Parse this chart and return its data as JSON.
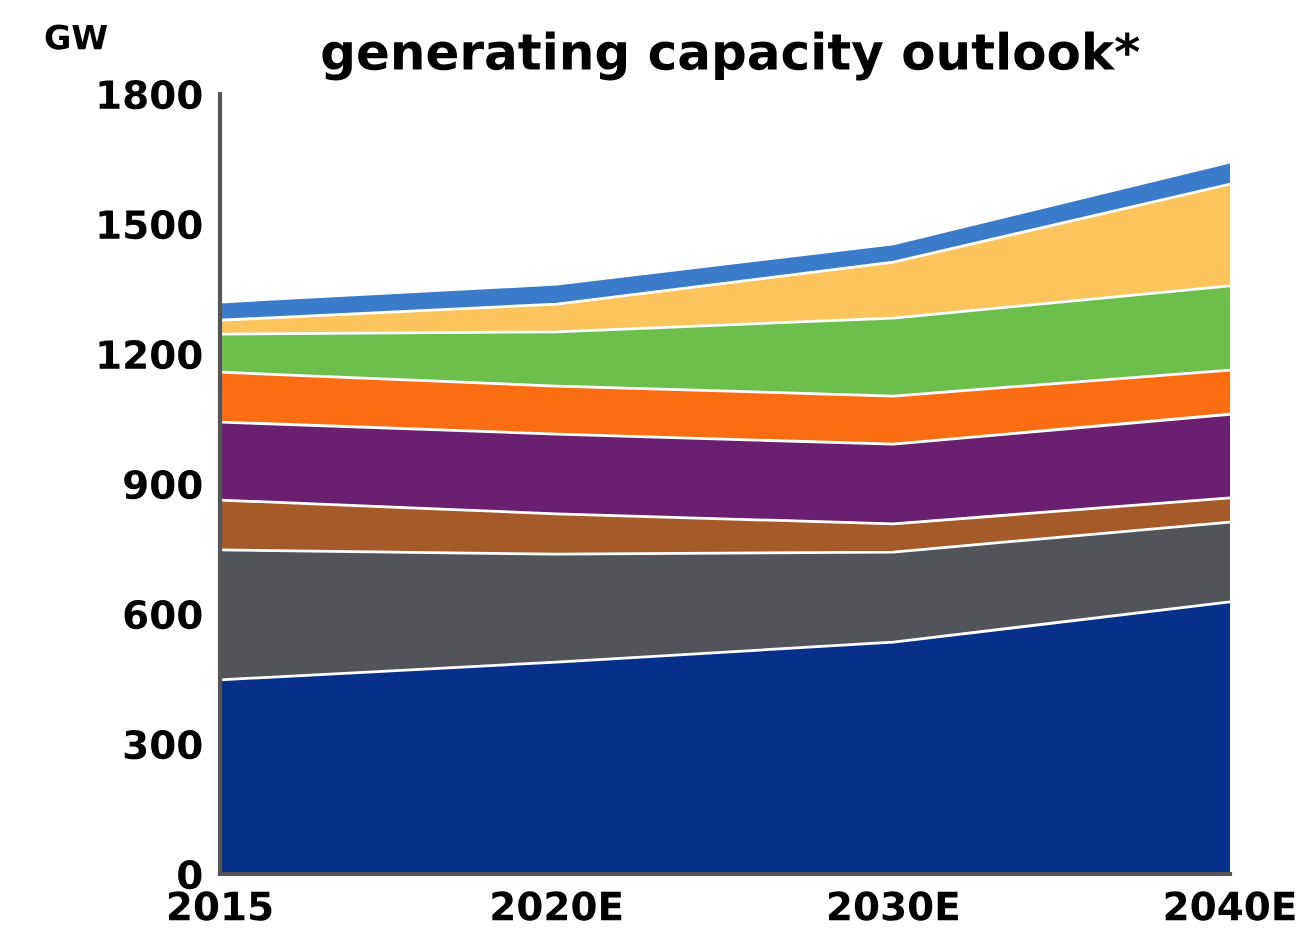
{
  "chart_data": {
    "type": "area",
    "stacked": true,
    "title": "generating capacity outlook*",
    "ylabel": "GW",
    "categories": [
      "2015",
      "2020E",
      "2030E",
      "2040E"
    ],
    "series": [
      {
        "color": "#06308a",
        "values": [
          448,
          489,
          535,
          628
        ]
      },
      {
        "color": "#535459",
        "values": [
          300,
          249,
          208,
          184
        ]
      },
      {
        "color": "#a65a2a",
        "values": [
          115,
          93,
          65,
          56
        ]
      },
      {
        "color": "#6a1f70",
        "values": [
          180,
          184,
          184,
          193
        ]
      },
      {
        "color": "#fb6d12",
        "values": [
          115,
          111,
          111,
          102
        ]
      },
      {
        "color": "#6cbf4a",
        "values": [
          88,
          125,
          180,
          194
        ]
      },
      {
        "color": "#fbc45c",
        "values": [
          32,
          64,
          129,
          235
        ]
      },
      {
        "color": "#3a7bca",
        "values": [
          42,
          46,
          42,
          51
        ]
      }
    ],
    "ylim": [
      0,
      1800
    ],
    "yticks": [
      0,
      300,
      600,
      900,
      1200,
      1500,
      1800
    ],
    "grid": false,
    "legend": false
  }
}
